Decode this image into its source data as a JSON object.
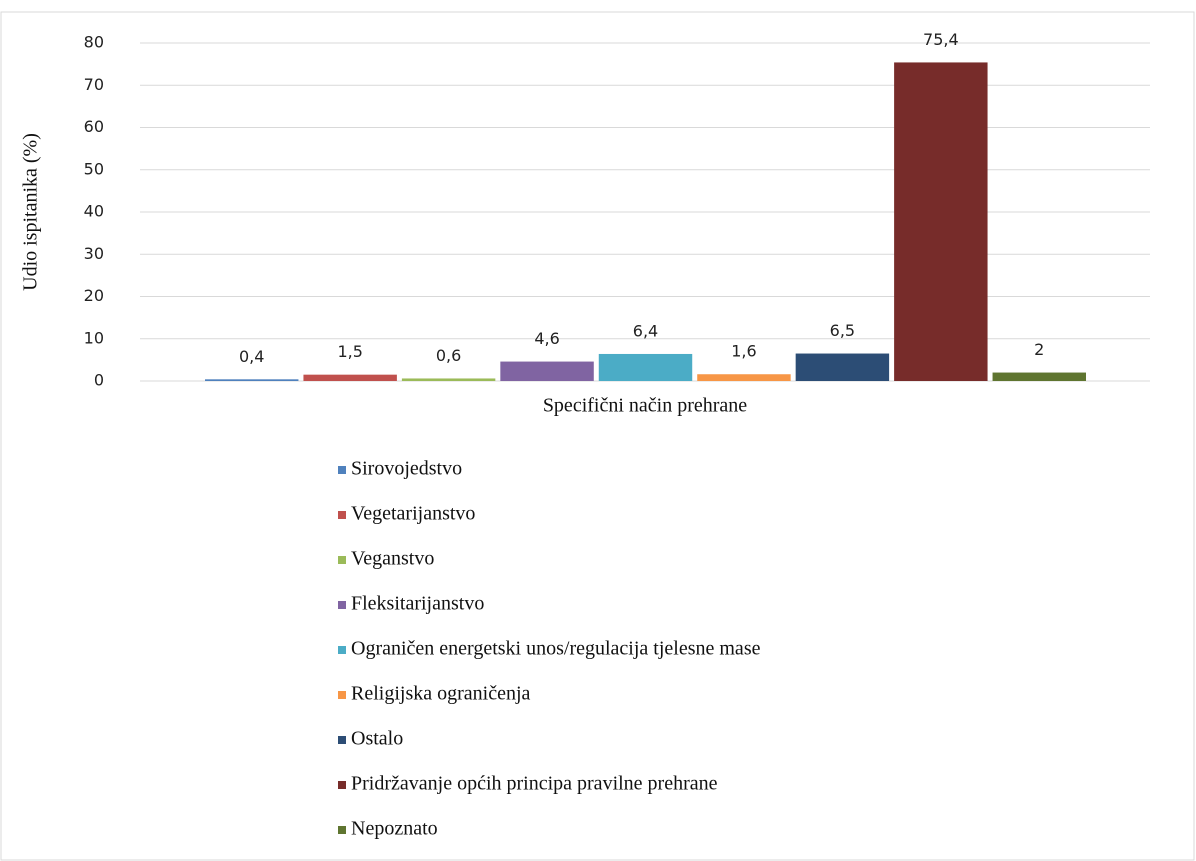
{
  "chart_data": {
    "type": "bar",
    "categories": [
      "Specifični način prehrane"
    ],
    "ylabel": "Udio ispitanika (%)",
    "ylim": [
      0,
      80
    ],
    "yticks": [
      0,
      10,
      20,
      30,
      40,
      50,
      60,
      70,
      80
    ],
    "grid": true,
    "legend": "bottom",
    "series": [
      {
        "name": "Sirovojedstvo",
        "color": "#4f81bd",
        "values": [
          0.4
        ],
        "value_labels": [
          "0,4"
        ]
      },
      {
        "name": "Vegetarijanstvo",
        "color": "#c0504d",
        "values": [
          1.5
        ],
        "value_labels": [
          "1,5"
        ]
      },
      {
        "name": "Veganstvo",
        "color": "#9bbb59",
        "values": [
          0.6
        ],
        "value_labels": [
          "0,6"
        ]
      },
      {
        "name": "Fleksitarijanstvo",
        "color": "#8064a2",
        "values": [
          4.6
        ],
        "value_labels": [
          "4,6"
        ]
      },
      {
        "name": "Ograničen energetski unos/regulacija tjelesne mase",
        "color": "#4bacc6",
        "values": [
          6.4
        ],
        "value_labels": [
          "6,4"
        ]
      },
      {
        "name": "Religijska ograničenja",
        "color": "#f79646",
        "values": [
          1.6
        ],
        "value_labels": [
          "1,6"
        ]
      },
      {
        "name": "Ostalo",
        "color": "#2c4d75",
        "values": [
          6.5
        ],
        "value_labels": [
          "6,5"
        ]
      },
      {
        "name": "Pridržavanje općih principa pravilne prehrane",
        "color": "#772c2a",
        "values": [
          75.4
        ],
        "value_labels": [
          "75,4"
        ]
      },
      {
        "name": "Nepoznato",
        "color": "#5f7530",
        "values": [
          2
        ]
      }
    ]
  }
}
